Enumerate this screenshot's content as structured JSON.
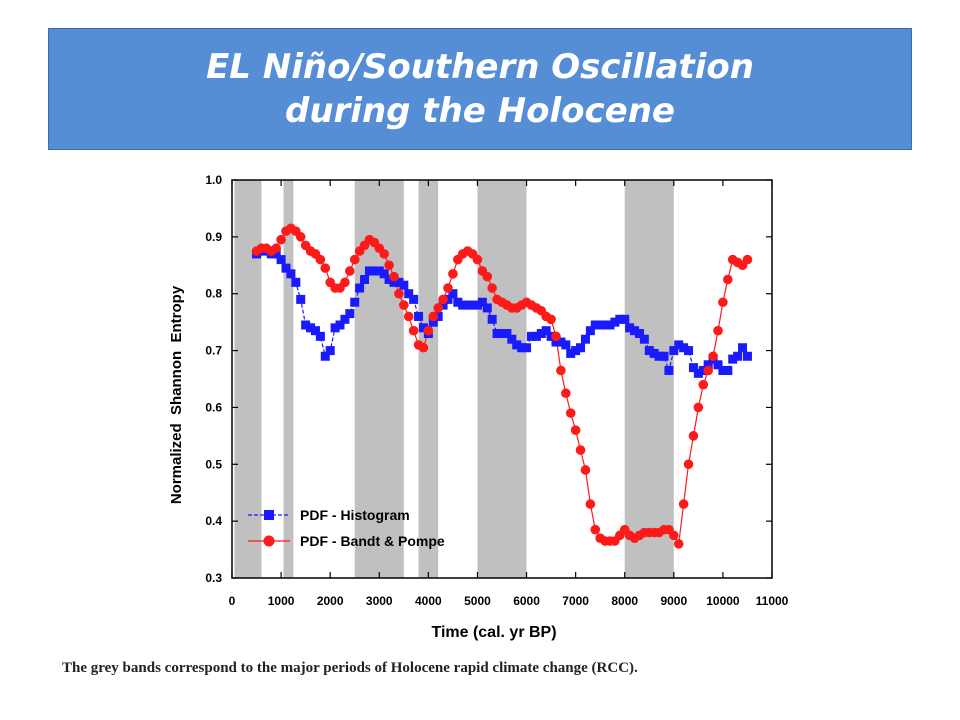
{
  "title": {
    "line1": "EL Niño/Southern Oscillation",
    "line2": "during the Holocene"
  },
  "caption": "The grey bands correspond to the major periods of Holocene rapid climate change (RCC).",
  "chart_data": {
    "type": "line",
    "xlabel": "Time (cal. yr BP)",
    "ylabel": "Normalized  Shannon  Entropy",
    "xlim": [
      0,
      11000
    ],
    "ylim": [
      0.3,
      1.0
    ],
    "xticks": [
      0,
      1000,
      2000,
      3000,
      4000,
      5000,
      6000,
      7000,
      8000,
      9000,
      10000,
      11000
    ],
    "yticks": [
      0.3,
      0.4,
      0.5,
      0.6,
      0.7,
      0.8,
      0.9,
      1.0
    ],
    "legend_position": "lower-left",
    "grey_bands": [
      [
        50,
        600
      ],
      [
        1050,
        1250
      ],
      [
        2500,
        3500
      ],
      [
        3800,
        4200
      ],
      [
        5000,
        6000
      ],
      [
        8000,
        9000
      ]
    ],
    "series": [
      {
        "name": "PDF - Histogram",
        "color": "#1a1aff",
        "marker": "square",
        "x": [
          500,
          600,
          700,
          800,
          900,
          1000,
          1100,
          1200,
          1300,
          1400,
          1500,
          1600,
          1700,
          1800,
          1900,
          2000,
          2100,
          2200,
          2300,
          2400,
          2500,
          2600,
          2700,
          2800,
          2900,
          3000,
          3100,
          3200,
          3300,
          3400,
          3500,
          3600,
          3700,
          3800,
          3900,
          4000,
          4100,
          4200,
          4300,
          4400,
          4500,
          4600,
          4700,
          4800,
          4900,
          5000,
          5100,
          5200,
          5300,
          5400,
          5500,
          5600,
          5700,
          5800,
          5900,
          6000,
          6100,
          6200,
          6300,
          6400,
          6500,
          6600,
          6700,
          6800,
          6900,
          7000,
          7100,
          7200,
          7300,
          7400,
          7500,
          7600,
          7700,
          7800,
          7900,
          8000,
          8100,
          8200,
          8300,
          8400,
          8500,
          8600,
          8700,
          8800,
          8900,
          9000,
          9100,
          9200,
          9300,
          9400,
          9500,
          9600,
          9700,
          9800,
          9900,
          10000,
          10100,
          10200,
          10300,
          10400,
          10500
        ],
        "y": [
          0.87,
          0.875,
          0.875,
          0.87,
          0.87,
          0.86,
          0.845,
          0.835,
          0.82,
          0.79,
          0.745,
          0.74,
          0.735,
          0.725,
          0.69,
          0.7,
          0.74,
          0.745,
          0.755,
          0.765,
          0.785,
          0.81,
          0.825,
          0.84,
          0.84,
          0.84,
          0.835,
          0.825,
          0.82,
          0.82,
          0.815,
          0.8,
          0.79,
          0.76,
          0.74,
          0.73,
          0.75,
          0.76,
          0.78,
          0.79,
          0.8,
          0.785,
          0.78,
          0.78,
          0.78,
          0.78,
          0.785,
          0.775,
          0.755,
          0.73,
          0.73,
          0.73,
          0.72,
          0.71,
          0.705,
          0.705,
          0.725,
          0.725,
          0.73,
          0.735,
          0.725,
          0.715,
          0.715,
          0.71,
          0.695,
          0.7,
          0.705,
          0.72,
          0.735,
          0.745,
          0.745,
          0.745,
          0.745,
          0.75,
          0.755,
          0.755,
          0.74,
          0.735,
          0.73,
          0.72,
          0.7,
          0.695,
          0.69,
          0.69,
          0.665,
          0.7,
          0.71,
          0.705,
          0.7,
          0.67,
          0.66,
          0.665,
          0.675,
          0.685,
          0.675,
          0.665,
          0.665,
          0.685,
          0.69,
          0.705,
          0.69
        ]
      },
      {
        "name": "PDF - Bandt & Pompe",
        "color": "#ff1a1a",
        "marker": "circle",
        "x": [
          500,
          600,
          700,
          800,
          900,
          1000,
          1100,
          1200,
          1300,
          1400,
          1500,
          1600,
          1700,
          1800,
          1900,
          2000,
          2100,
          2200,
          2300,
          2400,
          2500,
          2600,
          2700,
          2800,
          2900,
          3000,
          3100,
          3200,
          3300,
          3400,
          3500,
          3600,
          3700,
          3800,
          3900,
          4000,
          4100,
          4200,
          4300,
          4400,
          4500,
          4600,
          4700,
          4800,
          4900,
          5000,
          5100,
          5200,
          5300,
          5400,
          5500,
          5600,
          5700,
          5800,
          5900,
          6000,
          6100,
          6200,
          6300,
          6400,
          6500,
          6600,
          6700,
          6800,
          6900,
          7000,
          7100,
          7200,
          7300,
          7400,
          7500,
          7600,
          7700,
          7800,
          7900,
          8000,
          8100,
          8200,
          8300,
          8400,
          8500,
          8600,
          8700,
          8800,
          8900,
          9000,
          9100,
          9200,
          9300,
          9400,
          9500,
          9600,
          9700,
          9800,
          9900,
          10000,
          10100,
          10200,
          10300,
          10400,
          10500
        ],
        "y": [
          0.875,
          0.88,
          0.88,
          0.875,
          0.88,
          0.895,
          0.91,
          0.915,
          0.91,
          0.9,
          0.885,
          0.875,
          0.87,
          0.86,
          0.845,
          0.82,
          0.81,
          0.81,
          0.82,
          0.84,
          0.86,
          0.875,
          0.885,
          0.895,
          0.89,
          0.88,
          0.87,
          0.85,
          0.83,
          0.8,
          0.78,
          0.76,
          0.735,
          0.71,
          0.705,
          0.735,
          0.76,
          0.775,
          0.79,
          0.81,
          0.835,
          0.86,
          0.87,
          0.875,
          0.87,
          0.86,
          0.84,
          0.83,
          0.81,
          0.79,
          0.785,
          0.78,
          0.775,
          0.775,
          0.78,
          0.785,
          0.78,
          0.775,
          0.77,
          0.76,
          0.755,
          0.725,
          0.665,
          0.625,
          0.59,
          0.56,
          0.525,
          0.49,
          0.43,
          0.385,
          0.37,
          0.365,
          0.365,
          0.365,
          0.375,
          0.385,
          0.375,
          0.37,
          0.375,
          0.38,
          0.38,
          0.38,
          0.38,
          0.385,
          0.385,
          0.375,
          0.36,
          0.43,
          0.5,
          0.55,
          0.6,
          0.64,
          0.665,
          0.69,
          0.735,
          0.785,
          0.825,
          0.86,
          0.855,
          0.85,
          0.86
        ]
      }
    ]
  }
}
